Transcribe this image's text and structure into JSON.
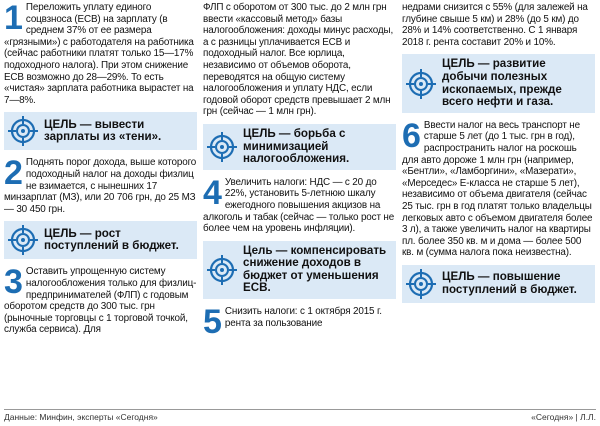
{
  "columns": [
    [
      {
        "number": "1",
        "text": "Переложить уплату единого соцвзноса (ЕСВ) на зарплату (в среднем 37% от ее размера «грязными») с работодателя на работника (сейчас работники платят только 15—17% подоходного налога). При этом снижение ЕСВ возможно до 28—29%. То есть «чистая» зарплата работника вырастет на 7—8%."
      },
      {
        "goal": "ЦЕЛЬ — вывести зарплаты из «тени»."
      },
      {
        "number": "2",
        "text": "Поднять порог дохода, выше которого подоходный налог на доходы физлиц не взимается, с нынешних 17 минзарплат (МЗ), или 20 706 грн, до 25 МЗ — 30 450 грн."
      },
      {
        "goal": "ЦЕЛЬ — рост поступлений в бюджет."
      },
      {
        "number": "3",
        "text": "Оставить упрощенную систему налогообложения только для физлиц-предпринимателей (ФЛП) с годовым оборотом средств до 300 тыс. грн (рыночные торговцы с 1 торговой точкой, служба сервиса). Для"
      }
    ],
    [
      {
        "text": "ФЛП с оборотом от 300 тыс. до 2 млн грн ввести «кассовый метод» базы налогообложения: доходы минус расходы, а с разницы уплачивается ЕСВ и подоходный налог. Все юрлица, независимо от объемов оборота, переводятся на общую систему налогообложения и уплату НДС, если годовой оборот средств превышает 2 млн грн (сейчас — 1 млн грн)."
      },
      {
        "goal": "ЦЕЛЬ — борьба с минимизацией налогообложения."
      },
      {
        "number": "4",
        "text": "Увеличить налоги: НДС — с 20 до 22%, установить 5-летнюю шкалу ежегодного повышения акцизов на алкоголь и табак (сейчас — только рост не более чем на уровень инфляции)."
      },
      {
        "goal": "Цель — компенсировать снижение доходов в бюджет от уменьшения ЕСВ."
      },
      {
        "number": "5",
        "text": "Снизить налоги: с 1 октября 2015 г. рента за пользование"
      }
    ],
    [
      {
        "text": "недрами снизится с 55% (для залежей на глубине свыше 5 км) и 28% (до 5 км) до 28% и 14% соответственно. С 1 января 2018 г. рента составит 20% и 10%."
      },
      {
        "goal": "ЦЕЛЬ — развитие добычи полезных ископаемых, прежде всего нефти и газа."
      },
      {
        "number": "6",
        "text": "Ввести налог на весь транспорт не старше 5 лет (до 1 тыс. грн в год), распространить налог на роскошь для авто дороже 1 млн грн (например, «Бентли», «Ламборгини», «Мазерати», «Мерседес» Е-класса не старше 5 лет), независимо от объема двигателя (сейчас 25 тыс. грн в год платят только владельцы легковых авто с объемом двигателя более 3 л), а также увеличить налог на квартиры пл. более 350 кв. м и дома — более 500 кв. м (сумма налога пока неизвестна)."
      },
      {
        "goal": "ЦЕЛЬ — повышение поступлений в бюджет."
      }
    ]
  ],
  "footer": {
    "source": "Данные: Минфин, эксперты «Сегодня»",
    "credit": "«Сегодня» | Л.Л."
  }
}
